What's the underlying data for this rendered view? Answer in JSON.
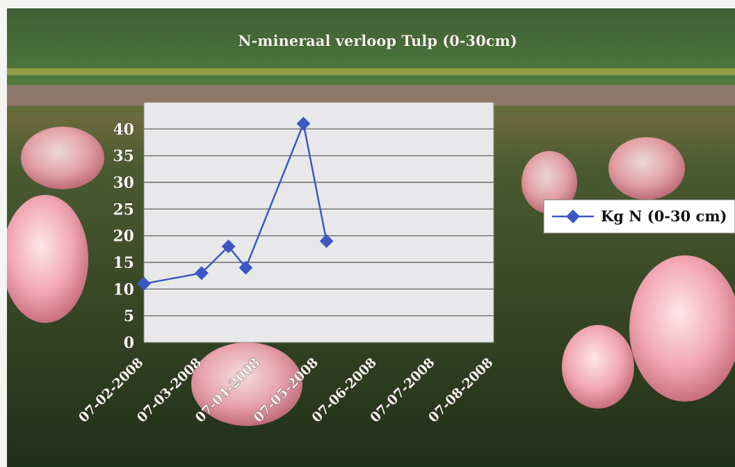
{
  "chart_data": {
    "type": "line",
    "title": "N-mineraal verloop Tulp (0-30cm)",
    "xlabel": "",
    "ylabel": "",
    "categories": [
      "07-02-2008",
      "07-03-2008",
      "07-04-2008",
      "07-05-2008",
      "07-06-2008",
      "07-07-2008",
      "07-08-2008"
    ],
    "x": [
      "07-02-2008",
      "08-03-2008",
      "22-03-2008",
      "31-03-2008",
      "30-04-2008",
      "12-05-2008"
    ],
    "series": [
      {
        "name": "Kg N (0-30 cm)",
        "values": [
          11,
          13,
          18,
          14,
          41,
          19
        ]
      }
    ],
    "ylim": [
      0,
      45
    ],
    "yticks": [
      "0",
      "5",
      "10",
      "15",
      "20",
      "25",
      "30",
      "35",
      "40"
    ],
    "grid": true,
    "legend": "right",
    "colors": {
      "line": "#3b57c4",
      "marker": "#3b57c4",
      "plot_bg": "#e8e8ea",
      "grid": "#6e6e6e"
    }
  }
}
